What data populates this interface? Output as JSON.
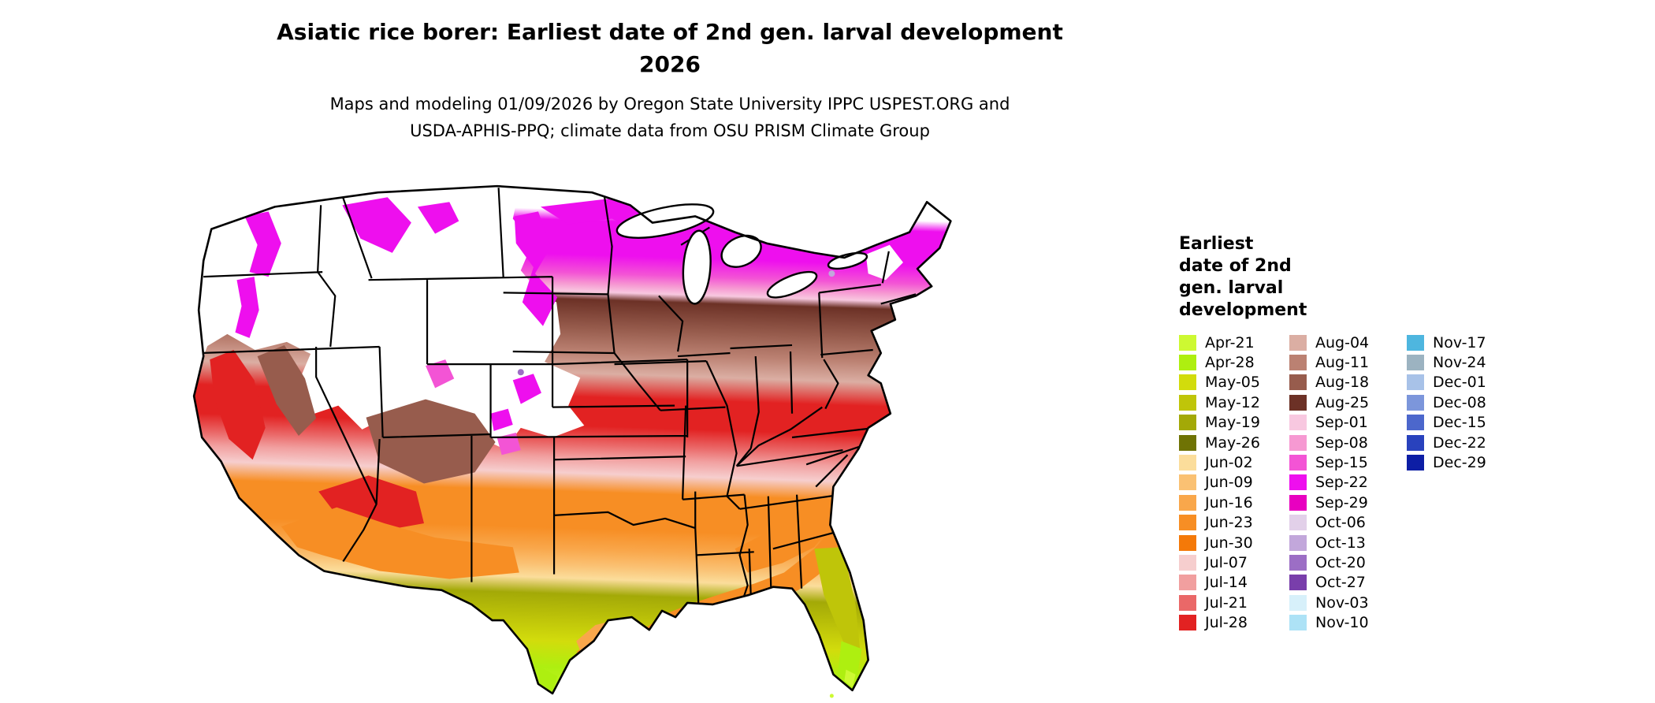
{
  "header": {
    "title_line1": "Asiatic rice borer: Earliest date of 2nd gen. larval development",
    "title_line2": "2026",
    "subtitle_line1": "Maps and modeling 01/09/2026 by Oregon State University IPPC USPEST.ORG and",
    "subtitle_line2": "USDA-APHIS-PPQ; climate data from OSU PRISM Climate Group"
  },
  "map": {
    "name": "Contiguous United States choropleth of earliest 2nd generation larval development date",
    "no_data_color": "#ffffff",
    "state_border_color": "#000000"
  },
  "legend": {
    "title_lines": [
      "Earliest",
      "date of 2nd",
      "gen. larval",
      "development"
    ],
    "columns": [
      [
        {
          "label": "Apr-21",
          "color": "#CDF932"
        },
        {
          "label": "Apr-28",
          "color": "#AEEF10"
        },
        {
          "label": "May-05",
          "color": "#D2DC0C"
        },
        {
          "label": "May-12",
          "color": "#BFC509"
        },
        {
          "label": "May-19",
          "color": "#A3A907"
        },
        {
          "label": "May-26",
          "color": "#6F7304"
        },
        {
          "label": "Jun-02",
          "color": "#FBDD9B"
        },
        {
          "label": "Jun-09",
          "color": "#FAC173"
        },
        {
          "label": "Jun-16",
          "color": "#F9A74B"
        },
        {
          "label": "Jun-23",
          "color": "#F78E24"
        },
        {
          "label": "Jun-30",
          "color": "#F47908"
        },
        {
          "label": "Jul-07",
          "color": "#F6CECE"
        },
        {
          "label": "Jul-14",
          "color": "#F19F9F"
        },
        {
          "label": "Jul-21",
          "color": "#EA6868"
        },
        {
          "label": "Jul-28",
          "color": "#E22222"
        }
      ],
      [
        {
          "label": "Aug-04",
          "color": "#DBAEA3"
        },
        {
          "label": "Aug-11",
          "color": "#BB8172"
        },
        {
          "label": "Aug-18",
          "color": "#975C4D"
        },
        {
          "label": "Aug-25",
          "color": "#6C3126"
        },
        {
          "label": "Sep-01",
          "color": "#F8C8E0"
        },
        {
          "label": "Sep-08",
          "color": "#F699D2"
        },
        {
          "label": "Sep-15",
          "color": "#F354D5"
        },
        {
          "label": "Sep-22",
          "color": "#EE0FEE"
        },
        {
          "label": "Sep-29",
          "color": "#E800C0"
        },
        {
          "label": "Oct-06",
          "color": "#E2D0E9"
        },
        {
          "label": "Oct-13",
          "color": "#C2A7DB"
        },
        {
          "label": "Oct-20",
          "color": "#9C6EC5"
        },
        {
          "label": "Oct-27",
          "color": "#793EAB"
        },
        {
          "label": "Nov-03",
          "color": "#D7F0FA"
        },
        {
          "label": "Nov-10",
          "color": "#ADE2F6"
        }
      ],
      [
        {
          "label": "Nov-17",
          "color": "#4EB6DF"
        },
        {
          "label": "Nov-24",
          "color": "#9CB3C1"
        },
        {
          "label": "Dec-01",
          "color": "#A8C2E8"
        },
        {
          "label": "Dec-08",
          "color": "#7C96DB"
        },
        {
          "label": "Dec-15",
          "color": "#4C67CC"
        },
        {
          "label": "Dec-22",
          "color": "#2942BD"
        },
        {
          "label": "Dec-29",
          "color": "#0D1EA5"
        }
      ]
    ]
  }
}
